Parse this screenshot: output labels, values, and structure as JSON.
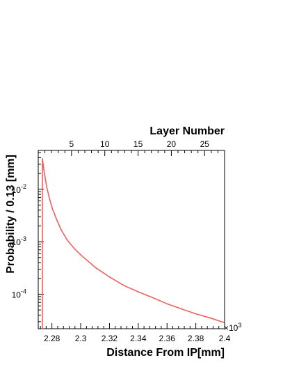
{
  "chart_data": {
    "type": "line",
    "xlabel": "Distance From IP[mm]",
    "x_multiplier_label": "×10",
    "x_multiplier_exp": "3",
    "ylabel": "Probability / 0.13 [mm]",
    "top_axis_label": "Layer Number",
    "xlim": [
      2.2705,
      2.4
    ],
    "ylim": [
      2.2e-05,
      0.055
    ],
    "y_scale": "log",
    "line_color": "#f06060",
    "x_ticks": [
      2.28,
      2.3,
      2.32,
      2.34,
      2.36,
      2.38,
      2.4
    ],
    "x_tick_labels": [
      "2.28",
      "2.3",
      "2.32",
      "2.34",
      "2.36",
      "2.38",
      "2.4"
    ],
    "y_ticks": [
      0.01,
      0.001,
      0.0001
    ],
    "y_tick_bases": [
      "10",
      "10",
      "10"
    ],
    "y_tick_exps": [
      "-2",
      "-3",
      "-4"
    ],
    "top_ticks": [
      5,
      10,
      15,
      20,
      25
    ],
    "top_tick_labels": [
      "5",
      "10",
      "15",
      "20",
      "25"
    ],
    "top_axis_range": [
      0,
      28
    ],
    "series": [
      {
        "x": [
          2.2734,
          2.2744,
          2.2754,
          2.2764,
          2.2784,
          2.2804,
          2.2834,
          2.2864,
          2.2904,
          2.2954,
          2.3004,
          2.3104,
          2.3204,
          2.3304,
          2.3404,
          2.3504,
          2.3604,
          2.3704,
          2.3804,
          2.3904,
          2.3994
        ],
        "y": [
          0.038,
          0.024,
          0.016,
          0.011,
          0.0065,
          0.0042,
          0.0026,
          0.0017,
          0.0011,
          0.00075,
          0.00055,
          0.00032,
          0.00021,
          0.000145,
          0.00011,
          8.5e-05,
          6.5e-05,
          5.2e-05,
          4.2e-05,
          3.5e-05,
          2.9e-05
        ]
      }
    ]
  }
}
